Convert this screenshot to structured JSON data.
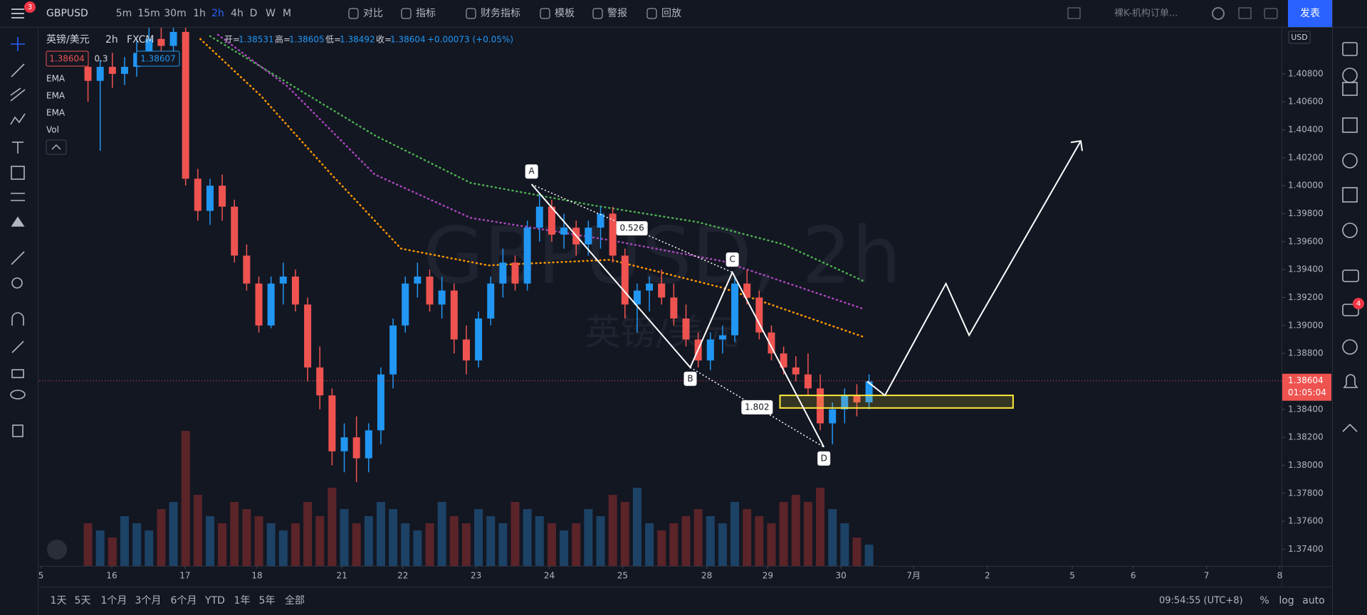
{
  "top_bar": {
    "menu_badge": "3",
    "symbol": "GBPUSD",
    "timeframes": [
      "5m",
      "15m",
      "30m",
      "1h",
      "2h",
      "4h",
      "D",
      "W",
      "M"
    ],
    "active_timeframe": 4,
    "tools": [
      "对比",
      "指标",
      "财务指标",
      "模板",
      "警报",
      "回放"
    ],
    "layout_name": "裸K-机构订单...",
    "publish": "发表"
  },
  "legend": {
    "name": "英镑/美元",
    "interval": "2h",
    "source": "FXCM",
    "ohlc": [
      {
        "label": "开=",
        "value": 1.38531
      },
      {
        "label": "高=",
        "value": 1.38605
      },
      {
        "label": "低=",
        "value": 1.38492
      },
      {
        "label": "收=",
        "value": 1.38604
      }
    ],
    "change": "+0.00073 (+0.05%)",
    "bid": "1.38604",
    "spread": "0.3",
    "ask": "1.38607",
    "indicators": [
      "EMA",
      "EMA",
      "EMA",
      "Vol"
    ]
  },
  "right_bar": {
    "badge": "4"
  },
  "bottom_bar": {
    "ranges": [
      "1天",
      "5天",
      "1个月",
      "3个月",
      "6个月",
      "YTD",
      "1年",
      "5年",
      "全部"
    ],
    "clock": "09:54:55 (UTC+8)",
    "options": [
      "%",
      "log",
      "auto"
    ]
  },
  "chart_data": {
    "type": "candlestick",
    "watermark": "GBPUSD, 2h",
    "watermark_sub": "英镑/美元",
    "currency": "USD",
    "up_color": "#2196f3",
    "down_color": "#ef5350",
    "xlim": [
      0,
      203.6
    ],
    "ylim": [
      1.3728,
      1.4113
    ],
    "xticks": [
      {
        "value": 0.3,
        "label": "5"
      },
      {
        "value": 11.9,
        "label": "16"
      },
      {
        "value": 23.9,
        "label": "17"
      },
      {
        "value": 35.7,
        "label": "18"
      },
      {
        "value": 49.6,
        "label": "21"
      },
      {
        "value": 59.6,
        "label": "22"
      },
      {
        "value": 71.6,
        "label": "23"
      },
      {
        "value": 83.6,
        "label": "24"
      },
      {
        "value": 95.6,
        "label": "25"
      },
      {
        "value": 109.4,
        "label": "28"
      },
      {
        "value": 119.4,
        "label": "29"
      },
      {
        "value": 131.4,
        "label": "30"
      },
      {
        "value": 143.3,
        "label": "7月"
      },
      {
        "value": 155.4,
        "label": "2"
      },
      {
        "value": 169.3,
        "label": "5"
      },
      {
        "value": 179.3,
        "label": "6"
      },
      {
        "value": 191.3,
        "label": "7"
      },
      {
        "value": 203.3,
        "label": "8"
      }
    ],
    "yticks": [
      {
        "value": 1.374,
        "label": "1.37400"
      },
      {
        "value": 1.376,
        "label": "1.37600"
      },
      {
        "value": 1.378,
        "label": "1.37800"
      },
      {
        "value": 1.38,
        "label": "1.38000"
      },
      {
        "value": 1.382,
        "label": "1.38200"
      },
      {
        "value": 1.384,
        "label": "1.38400"
      },
      {
        "value": 1.386,
        "label": "1.38600"
      },
      {
        "value": 1.388,
        "label": "1.38800"
      },
      {
        "value": 1.39,
        "label": "1.39000"
      },
      {
        "value": 1.392,
        "label": "1.39200"
      },
      {
        "value": 1.394,
        "label": "1.39400"
      },
      {
        "value": 1.396,
        "label": "1.39600"
      },
      {
        "value": 1.398,
        "label": "1.39800"
      },
      {
        "value": 1.4,
        "label": "1.40000"
      },
      {
        "value": 1.402,
        "label": "1.40200"
      },
      {
        "value": 1.404,
        "label": "1.40400"
      },
      {
        "value": 1.406,
        "label": "1.40600"
      },
      {
        "value": 1.408,
        "label": "1.40800"
      }
    ],
    "last_price": 1.38604,
    "countdown": "01:05:04",
    "candles": [
      [
        8,
        1.4085,
        1.4095,
        1.406,
        1.4075
      ],
      [
        10,
        1.4075,
        1.409,
        1.4025,
        1.4085
      ],
      [
        12,
        1.4085,
        1.4095,
        1.407,
        1.408
      ],
      [
        14,
        1.408,
        1.4092,
        1.4072,
        1.4085
      ],
      [
        16,
        1.4085,
        1.4105,
        1.4078,
        1.4095
      ],
      [
        18,
        1.4095,
        1.4113,
        1.4088,
        1.4105
      ],
      [
        20,
        1.4105,
        1.4113,
        1.4095,
        1.41
      ],
      [
        22,
        1.41,
        1.4113,
        1.409,
        1.411
      ],
      [
        24,
        1.411,
        1.4113,
        1.4,
        1.4005
      ],
      [
        26,
        1.4005,
        1.4012,
        1.3975,
        1.3982
      ],
      [
        28,
        1.3982,
        1.4005,
        1.3972,
        1.4
      ],
      [
        30,
        1.4,
        1.4008,
        1.3975,
        1.3985
      ],
      [
        32,
        1.3985,
        1.399,
        1.3945,
        1.395
      ],
      [
        34,
        1.395,
        1.3958,
        1.3925,
        1.393
      ],
      [
        36,
        1.393,
        1.3935,
        1.3895,
        1.39
      ],
      [
        38,
        1.39,
        1.3935,
        1.3898,
        1.393
      ],
      [
        40,
        1.393,
        1.3945,
        1.3915,
        1.3935
      ],
      [
        42,
        1.3935,
        1.394,
        1.391,
        1.3915
      ],
      [
        44,
        1.3915,
        1.392,
        1.386,
        1.387
      ],
      [
        46,
        1.387,
        1.3885,
        1.384,
        1.385
      ],
      [
        48,
        1.385,
        1.3855,
        1.38,
        1.381
      ],
      [
        50,
        1.381,
        1.383,
        1.3795,
        1.382
      ],
      [
        52,
        1.382,
        1.3835,
        1.3788,
        1.3805
      ],
      [
        54,
        1.3805,
        1.383,
        1.3795,
        1.3825
      ],
      [
        56,
        1.3825,
        1.387,
        1.3815,
        1.3865
      ],
      [
        58,
        1.3865,
        1.3905,
        1.3855,
        1.39
      ],
      [
        60,
        1.39,
        1.3935,
        1.3895,
        1.393
      ],
      [
        62,
        1.393,
        1.3945,
        1.392,
        1.3935
      ],
      [
        64,
        1.3935,
        1.394,
        1.391,
        1.3915
      ],
      [
        66,
        1.3915,
        1.3935,
        1.3905,
        1.3925
      ],
      [
        68,
        1.3925,
        1.393,
        1.388,
        1.389
      ],
      [
        70,
        1.389,
        1.39,
        1.3865,
        1.3875
      ],
      [
        72,
        1.3875,
        1.391,
        1.387,
        1.3905
      ],
      [
        74,
        1.3905,
        1.3935,
        1.39,
        1.393
      ],
      [
        76,
        1.393,
        1.3955,
        1.392,
        1.3945
      ],
      [
        78,
        1.3945,
        1.395,
        1.3925,
        1.393
      ],
      [
        80,
        1.393,
        1.3975,
        1.3925,
        1.397
      ],
      [
        82,
        1.397,
        1.3995,
        1.396,
        1.3985
      ],
      [
        84,
        1.3985,
        1.399,
        1.396,
        1.3965
      ],
      [
        86,
        1.3965,
        1.398,
        1.3955,
        1.397
      ],
      [
        88,
        1.397,
        1.3975,
        1.395,
        1.3958
      ],
      [
        90,
        1.3958,
        1.3975,
        1.395,
        1.397
      ],
      [
        92,
        1.397,
        1.3985,
        1.3955,
        1.398
      ],
      [
        94,
        1.398,
        1.3985,
        1.3945,
        1.395
      ],
      [
        96,
        1.395,
        1.3955,
        1.3905,
        1.3915
      ],
      [
        98,
        1.3915,
        1.393,
        1.3895,
        1.3925
      ],
      [
        100,
        1.3925,
        1.3935,
        1.391,
        1.393
      ],
      [
        102,
        1.393,
        1.394,
        1.3915,
        1.392
      ],
      [
        104,
        1.392,
        1.393,
        1.39,
        1.3905
      ],
      [
        106,
        1.3905,
        1.3915,
        1.3885,
        1.389
      ],
      [
        108,
        1.389,
        1.3895,
        1.387,
        1.3875
      ],
      [
        110,
        1.3875,
        1.3895,
        1.3868,
        1.389
      ],
      [
        112,
        1.389,
        1.39,
        1.388,
        1.3893
      ],
      [
        114,
        1.3893,
        1.3935,
        1.3888,
        1.393
      ],
      [
        116,
        1.393,
        1.394,
        1.3915,
        1.392
      ],
      [
        118,
        1.392,
        1.3925,
        1.389,
        1.3895
      ],
      [
        120,
        1.3895,
        1.39,
        1.3875,
        1.388
      ],
      [
        122,
        1.388,
        1.3885,
        1.3865,
        1.387
      ],
      [
        124,
        1.387,
        1.3878,
        1.386,
        1.3865
      ],
      [
        126,
        1.3865,
        1.388,
        1.385,
        1.3855
      ],
      [
        128,
        1.3855,
        1.3865,
        1.3825,
        1.383
      ],
      [
        130,
        1.383,
        1.3845,
        1.3815,
        1.384
      ],
      [
        132,
        1.384,
        1.3855,
        1.383,
        1.385
      ],
      [
        134,
        1.385,
        1.3858,
        1.3835,
        1.3845
      ],
      [
        136,
        1.3845,
        1.3865,
        1.384,
        1.386
      ]
    ],
    "volumes": [
      30,
      25,
      20,
      35,
      30,
      25,
      40,
      45,
      95,
      50,
      35,
      30,
      45,
      40,
      35,
      30,
      25,
      30,
      45,
      35,
      55,
      40,
      30,
      35,
      45,
      40,
      30,
      25,
      30,
      45,
      35,
      30,
      40,
      35,
      30,
      45,
      40,
      35,
      30,
      25,
      30,
      40,
      35,
      50,
      45,
      55,
      30,
      25,
      30,
      35,
      40,
      35,
      30,
      45,
      40,
      35,
      30,
      45,
      50,
      45,
      55,
      40,
      30,
      20,
      15
    ],
    "emas": [
      {
        "color": "#4caf50",
        "x": [
          28,
          55,
          70.7,
          90.7,
          107.9,
          122,
          135
        ],
        "y": [
          1.4107,
          1.4036,
          1.4002,
          1.3986,
          1.3974,
          1.3958,
          1.3932
        ]
      },
      {
        "color": "#ab47bc",
        "x": [
          29.3,
          40.7,
          55,
          70.7,
          93.6,
          112,
          135
        ],
        "y": [
          1.4108,
          1.4071,
          1.4008,
          1.3977,
          1.3961,
          1.3946,
          1.3912
        ]
      },
      {
        "color": "#ff9800",
        "x": [
          26.4,
          36.4,
          47.9,
          59.3,
          73.6,
          93.6,
          112,
          135
        ],
        "y": [
          1.4105,
          1.4064,
          1.4008,
          1.3955,
          1.3943,
          1.3947,
          1.3927,
          1.3892
        ]
      }
    ],
    "pattern": [
      {
        "label": "A",
        "x": 80.7,
        "y": 1.4001
      },
      {
        "label": "B",
        "x": 106.7,
        "y": 1.387
      },
      {
        "label": "C",
        "x": 113.6,
        "y": 1.3938
      },
      {
        "label": "D",
        "x": 128.6,
        "y": 1.3813
      }
    ],
    "ratios": [
      0.526,
      1.802
    ],
    "projection": {
      "x": [
        135.7,
        138.6,
        148.6,
        152.4,
        170.7
      ],
      "y": [
        1.386,
        1.385,
        1.393,
        1.3893,
        1.4032
      ]
    },
    "zone": {
      "x": [
        121.4,
        159.6
      ],
      "y": [
        1.385,
        1.3841
      ]
    }
  }
}
